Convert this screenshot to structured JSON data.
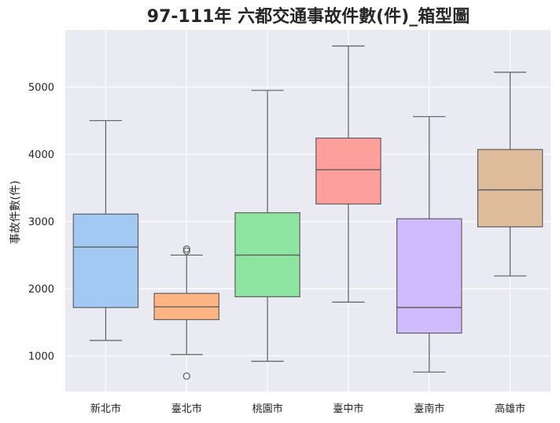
{
  "chart_data": {
    "type": "box",
    "title": "97-111年 六都交通事故件數(件)_箱型圖",
    "xlabel": "",
    "ylabel": "事故件數(件)",
    "ylim": [
      470,
      5850
    ],
    "yticks": [
      1000,
      2000,
      3000,
      4000,
      5000
    ],
    "grid": true,
    "background": "#eaeaf2",
    "grid_color": "#ffffff",
    "line_color": "#5f5f5f",
    "categories": [
      "新北市",
      "臺北市",
      "桃園市",
      "臺中市",
      "臺南市",
      "高雄市"
    ],
    "series": [
      {
        "category": "新北市",
        "color": "#a1c9f4",
        "whisker_low": 1230,
        "q1": 1720,
        "median": 2620,
        "q3": 3110,
        "whisker_high": 4500,
        "outliers": []
      },
      {
        "category": "臺北市",
        "color": "#ffb482",
        "whisker_low": 1020,
        "q1": 1540,
        "median": 1730,
        "q3": 1930,
        "whisker_high": 2500,
        "outliers": [
          700,
          2560,
          2590
        ]
      },
      {
        "category": "桃園市",
        "color": "#8de5a1",
        "whisker_low": 920,
        "q1": 1880,
        "median": 2500,
        "q3": 3130,
        "whisker_high": 4950,
        "outliers": []
      },
      {
        "category": "臺中市",
        "color": "#ff9f9b",
        "whisker_low": 1800,
        "q1": 3260,
        "median": 3770,
        "q3": 4240,
        "whisker_high": 5610,
        "outliers": []
      },
      {
        "category": "臺南市",
        "color": "#d0bbff",
        "whisker_low": 760,
        "q1": 1340,
        "median": 1720,
        "q3": 3040,
        "whisker_high": 4560,
        "outliers": []
      },
      {
        "category": "高雄市",
        "color": "#debb9b",
        "whisker_low": 2190,
        "q1": 2920,
        "median": 3470,
        "q3": 4070,
        "whisker_high": 5220,
        "outliers": []
      }
    ]
  }
}
